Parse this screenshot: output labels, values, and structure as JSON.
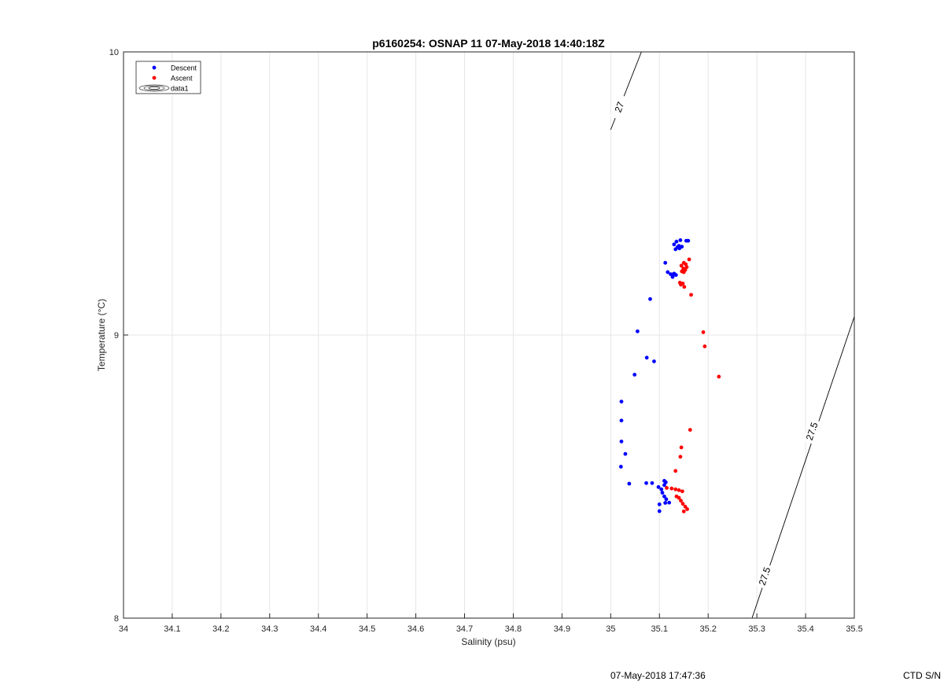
{
  "figure": {
    "footer_timestamp": "07-May-2018 17:47:36",
    "footer_serial": "CTD S/N"
  },
  "chart_data": {
    "type": "scatter",
    "title": "p6160254: OSNAP 11 07-May-2018 14:40:18Z",
    "xlabel": "Salinity (psu)",
    "ylabel": "Temperature (°C)",
    "xlim": [
      34,
      35.5
    ],
    "ylim": [
      8,
      10
    ],
    "x_ticks": [
      "34",
      "34.1",
      "34.2",
      "34.3",
      "34.4",
      "34.5",
      "34.6",
      "34.7",
      "34.8",
      "34.9",
      "35",
      "35.1",
      "35.2",
      "35.3",
      "35.4",
      "35.5"
    ],
    "y_ticks": [
      "8",
      "9",
      "10"
    ],
    "grid": true,
    "legend": {
      "position": "top-left",
      "entries": [
        "Descent",
        "Ascent",
        "data1"
      ]
    },
    "series": [
      {
        "name": "Descent",
        "color": "#0000ff",
        "points": [
          [
            35.135,
            9.33
          ],
          [
            35.143,
            9.335
          ],
          [
            35.155,
            9.333
          ],
          [
            35.159,
            9.333
          ],
          [
            35.13,
            9.32
          ],
          [
            35.14,
            9.315
          ],
          [
            35.146,
            9.312
          ],
          [
            35.137,
            9.31
          ],
          [
            35.133,
            9.303
          ],
          [
            35.141,
            9.306
          ],
          [
            35.112,
            9.255
          ],
          [
            35.117,
            9.222
          ],
          [
            35.123,
            9.215
          ],
          [
            35.13,
            9.217
          ],
          [
            35.127,
            9.21
          ],
          [
            35.127,
            9.205
          ],
          [
            35.134,
            9.212
          ],
          [
            35.081,
            9.127
          ],
          [
            35.055,
            9.013
          ],
          [
            35.074,
            8.92
          ],
          [
            35.089,
            8.907
          ],
          [
            35.049,
            8.86
          ],
          [
            35.022,
            8.765
          ],
          [
            35.022,
            8.698
          ],
          [
            35.022,
            8.624
          ],
          [
            35.03,
            8.58
          ],
          [
            35.021,
            8.535
          ],
          [
            35.038,
            8.475
          ],
          [
            35.073,
            8.477
          ],
          [
            35.085,
            8.477
          ],
          [
            35.11,
            8.485
          ],
          [
            35.113,
            8.48
          ],
          [
            35.11,
            8.47
          ],
          [
            35.098,
            8.463
          ],
          [
            35.104,
            8.455
          ],
          [
            35.106,
            8.443
          ],
          [
            35.11,
            8.43
          ],
          [
            35.114,
            8.42
          ],
          [
            35.12,
            8.408
          ],
          [
            35.112,
            8.407
          ],
          [
            35.1,
            8.402
          ],
          [
            35.1,
            8.378
          ]
        ]
      },
      {
        "name": "Ascent",
        "color": "#ff0000",
        "points": [
          [
            35.161,
            9.267
          ],
          [
            35.15,
            9.255
          ],
          [
            35.154,
            9.25
          ],
          [
            35.145,
            9.245
          ],
          [
            35.156,
            9.24
          ],
          [
            35.149,
            9.235
          ],
          [
            35.153,
            9.23
          ],
          [
            35.146,
            9.225
          ],
          [
            35.15,
            9.222
          ],
          [
            35.142,
            9.185
          ],
          [
            35.148,
            9.182
          ],
          [
            35.144,
            9.178
          ],
          [
            35.151,
            9.17
          ],
          [
            35.165,
            9.142
          ],
          [
            35.19,
            9.01
          ],
          [
            35.193,
            8.96
          ],
          [
            35.222,
            8.853
          ],
          [
            35.163,
            8.665
          ],
          [
            35.145,
            8.603
          ],
          [
            35.143,
            8.57
          ],
          [
            35.133,
            8.52
          ],
          [
            35.115,
            8.46
          ],
          [
            35.125,
            8.458
          ],
          [
            35.133,
            8.455
          ],
          [
            35.14,
            8.452
          ],
          [
            35.147,
            8.448
          ],
          [
            35.135,
            8.43
          ],
          [
            35.14,
            8.425
          ],
          [
            35.144,
            8.415
          ],
          [
            35.148,
            8.404
          ],
          [
            35.153,
            8.394
          ],
          [
            35.157,
            8.385
          ],
          [
            35.15,
            8.377
          ]
        ]
      }
    ],
    "contours": [
      {
        "name": "27",
        "line": [
          [
            35.0,
            9.725
          ],
          [
            35.063,
            10.0
          ]
        ],
        "labels": [
          {
            "text": "27",
            "at": [
              35.018,
              9.805
            ]
          }
        ]
      },
      {
        "name": "27.5",
        "line": [
          [
            35.29,
            8.0
          ],
          [
            35.5,
            9.065
          ]
        ],
        "labels": [
          {
            "text": "27.5",
            "at": [
              35.413,
              8.66
            ]
          },
          {
            "text": "27.5",
            "at": [
              35.316,
              8.148
            ]
          }
        ]
      }
    ]
  }
}
